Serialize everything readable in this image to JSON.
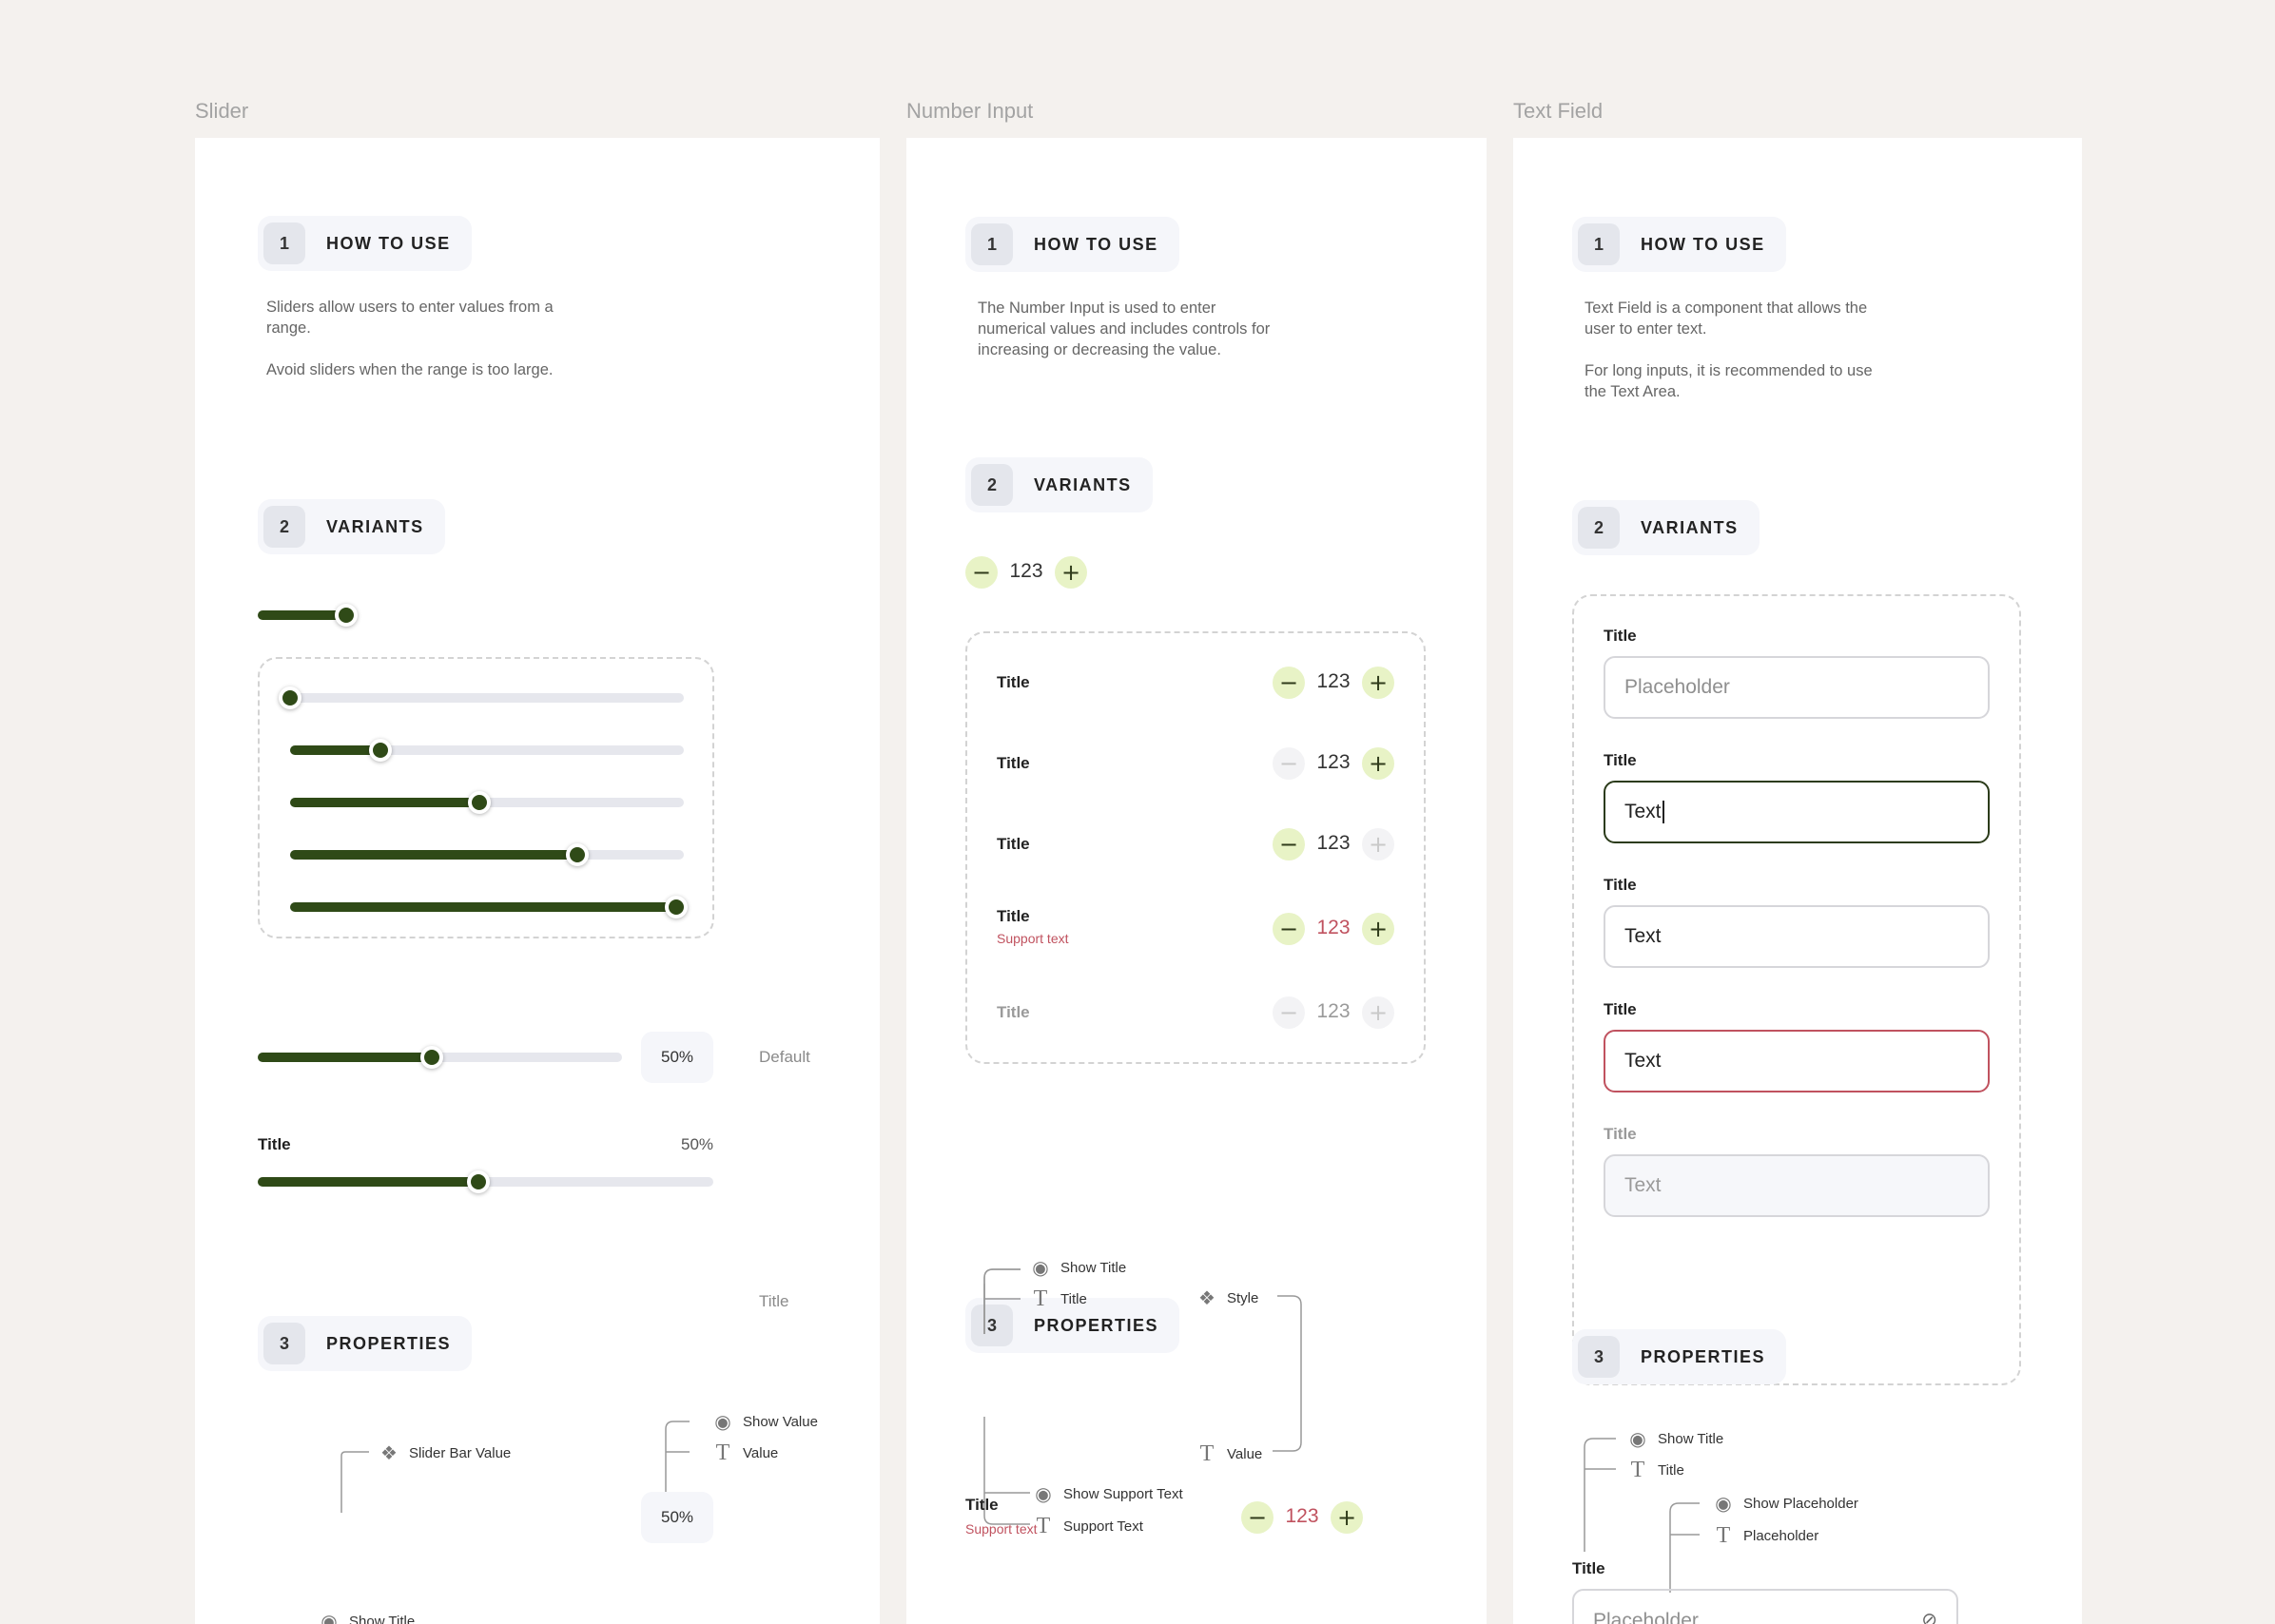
{
  "columns": {
    "slider": {
      "heading": "Slider",
      "how_to_use": {
        "num": "1",
        "label": "HOW TO USE",
        "p1": "Sliders allow users to enter values from a range.",
        "p2": "Avoid sliders when the range is too large."
      },
      "variants": {
        "num": "2",
        "label": "VARIANTS",
        "levels": [
          0,
          0.23,
          0.48,
          0.73,
          0.98
        ],
        "default_value": "50%",
        "default_label": "Default",
        "titled_title": "Title",
        "titled_value": "50%",
        "titled_label": "Title"
      },
      "properties": {
        "num": "3",
        "label": "PROPERTIES",
        "bar_value": "Slider Bar Value",
        "show_value": "Show Value",
        "value": "Value",
        "value_text": "50%",
        "show_title": "Show Title"
      }
    },
    "number_input": {
      "heading": "Number Input",
      "how_to_use": {
        "num": "1",
        "label": "HOW TO USE",
        "p1": "The Number Input is used to enter numerical values and includes controls for increasing or decreasing the value."
      },
      "variants": {
        "num": "2",
        "label": "VARIANTS",
        "value": "123",
        "rows": [
          {
            "title": "Title",
            "value": "123",
            "support": ""
          },
          {
            "title": "Title",
            "value": "123",
            "support": ""
          },
          {
            "title": "Title",
            "value": "123",
            "support": ""
          },
          {
            "title": "Title",
            "value": "123",
            "support": "Support text"
          },
          {
            "title": "Title",
            "value": "123",
            "support": ""
          }
        ]
      },
      "properties": {
        "num": "3",
        "label": "PROPERTIES",
        "show_title": "Show Title",
        "title": "Title",
        "style": "Style",
        "row_title": "Title",
        "row_support": "Support text",
        "row_value": "123",
        "value": "Value",
        "show_support": "Show Support Text",
        "support_text": "Support Text"
      }
    },
    "text_field": {
      "heading": "Text Field",
      "how_to_use": {
        "num": "1",
        "label": "HOW TO USE",
        "p1": "Text Field is a component that allows the user to enter text.",
        "p2": "For long inputs, it is recommended to use the Text Area."
      },
      "variants": {
        "num": "2",
        "label": "VARIANTS",
        "fields": [
          {
            "title": "Title",
            "value": "Placeholder",
            "state": "placeholder"
          },
          {
            "title": "Title",
            "value": "Text",
            "state": "focused"
          },
          {
            "title": "Title",
            "value": "Text",
            "state": "filled"
          },
          {
            "title": "Title",
            "value": "Text",
            "state": "error"
          },
          {
            "title": "Title",
            "value": "Text",
            "state": "disabled"
          }
        ]
      },
      "properties": {
        "num": "3",
        "label": "PROPERTIES",
        "show_title": "Show Title",
        "title": "Title",
        "show_placeholder": "Show Placeholder",
        "placeholder": "Placeholder",
        "field_title": "Title",
        "field_placeholder": "Placeholder"
      }
    }
  },
  "colors": {
    "accent": "#2f4a17",
    "stepper": "#e8f3c6",
    "error": "#c0525f",
    "background": "#f4f1ee"
  }
}
